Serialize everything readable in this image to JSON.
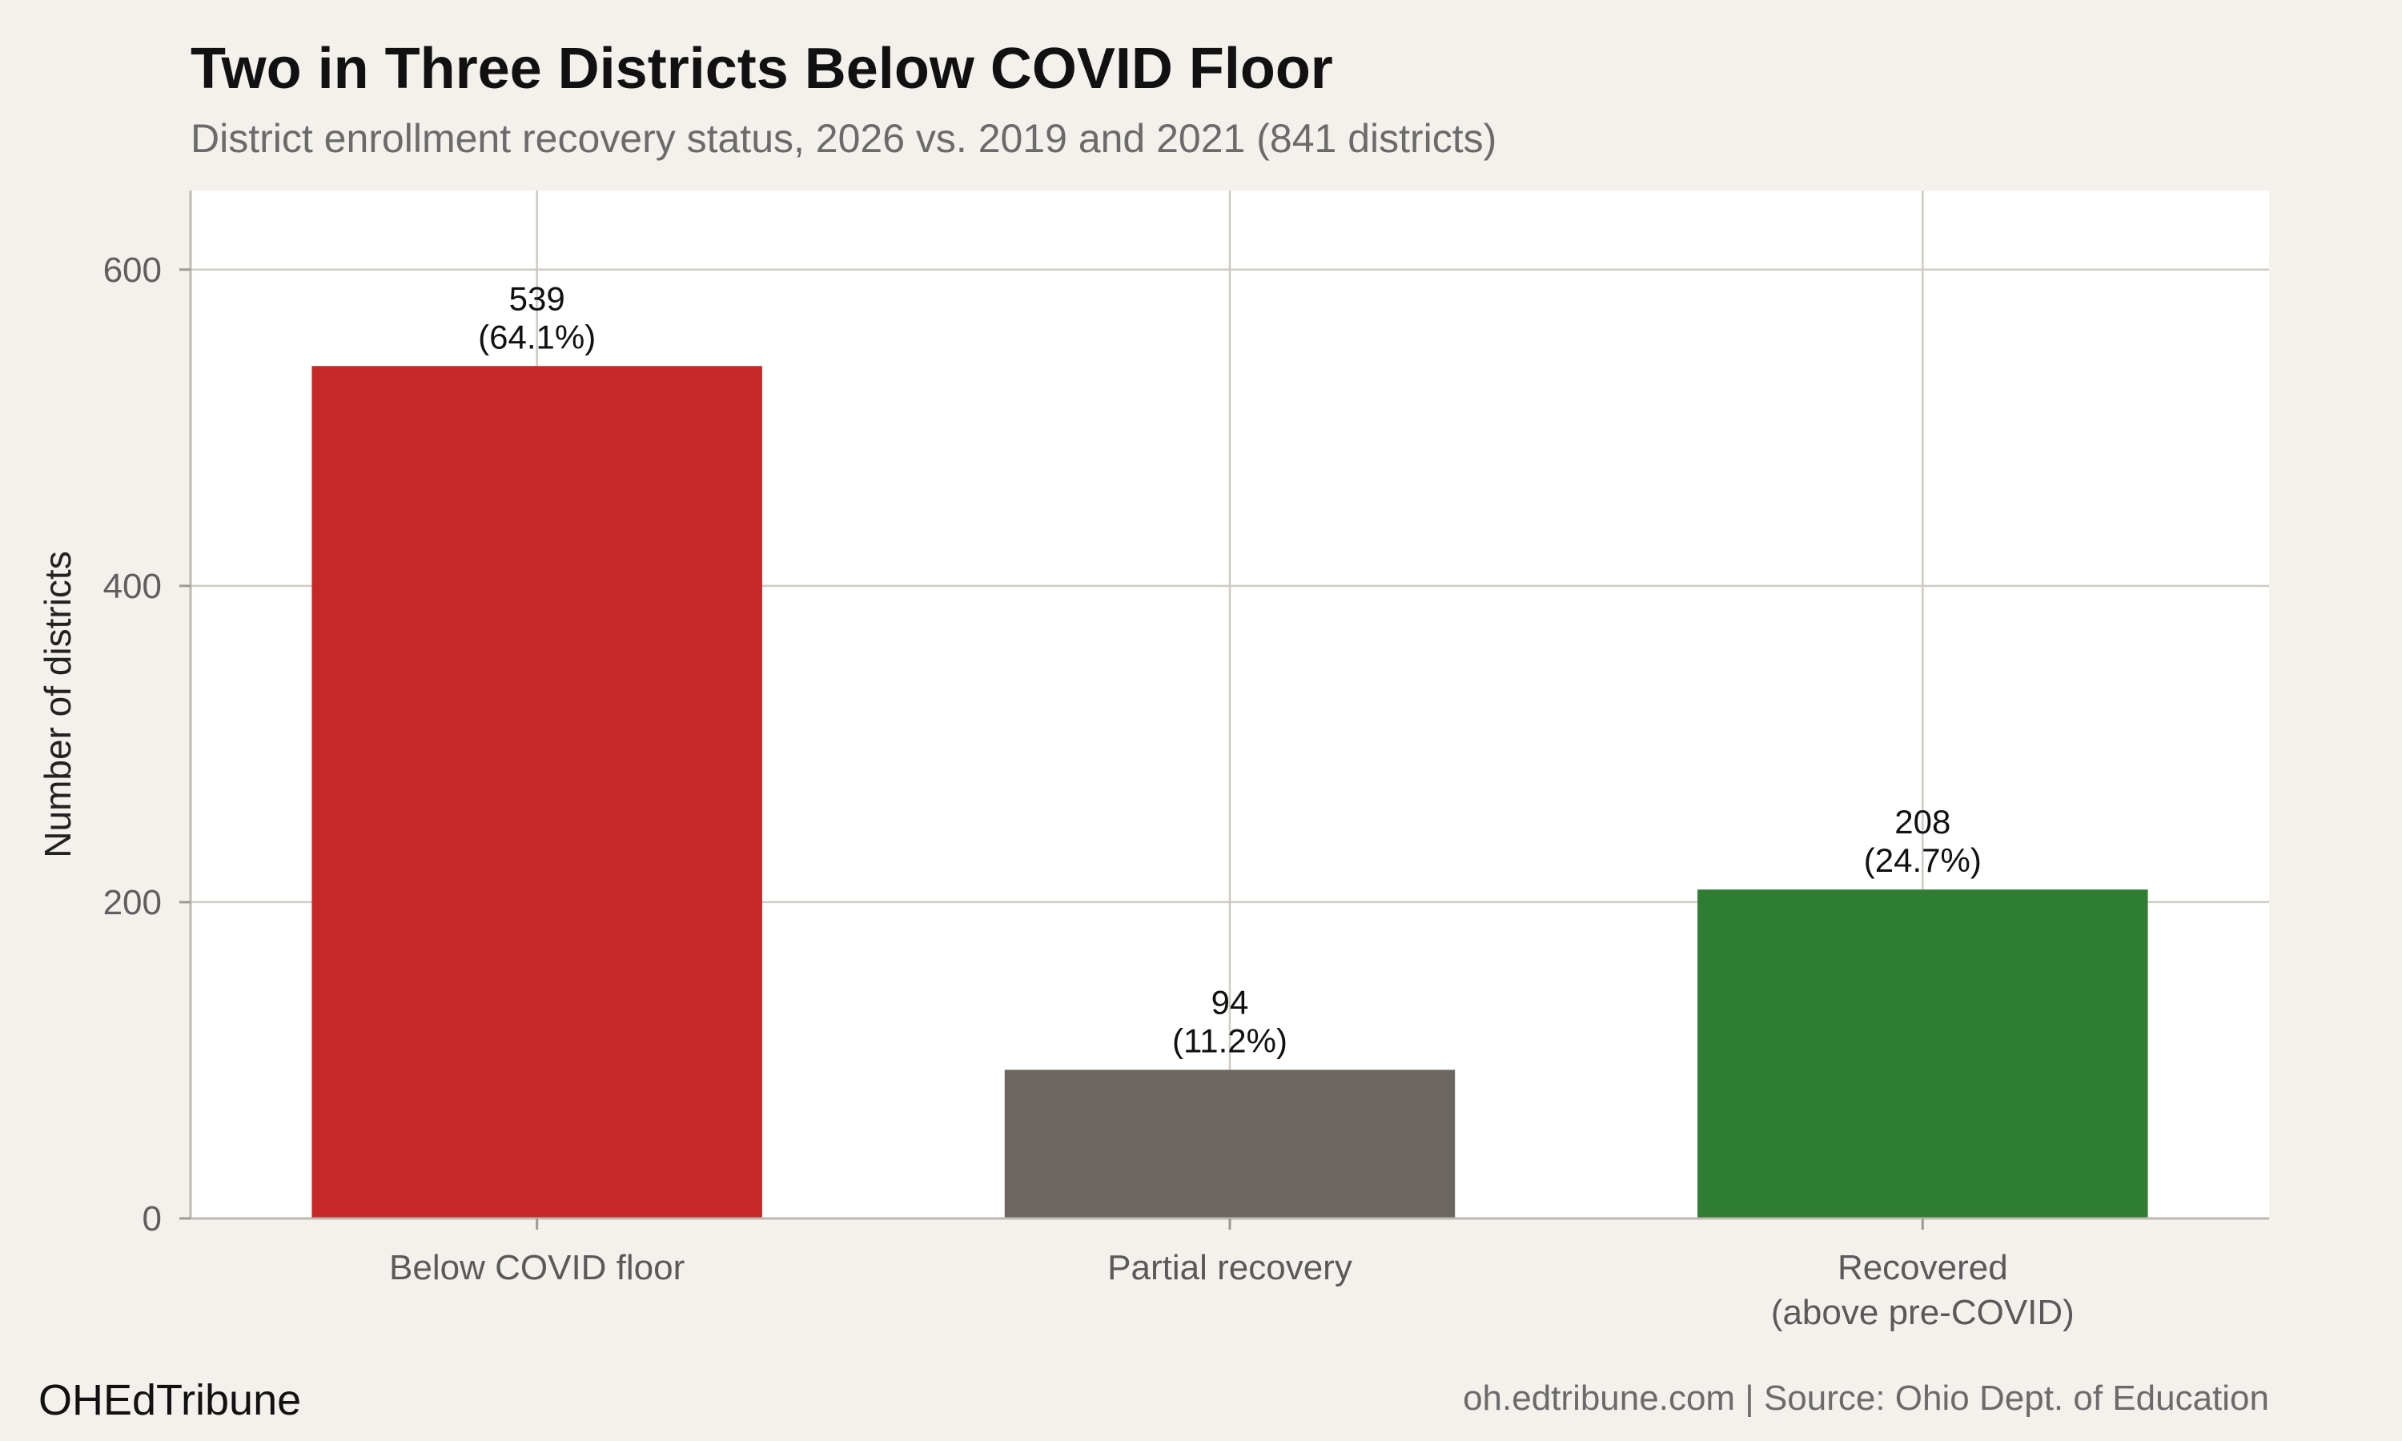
{
  "header": {
    "title": "Two in Three Districts Below COVID Floor",
    "subtitle": "District enrollment recovery status, 2026 vs. 2019 and 2021 (841 districts)"
  },
  "footer": {
    "brand": "OHEdTribune",
    "source": "oh.edtribune.com | Source: Ohio Dept. of Education"
  },
  "chart_data": {
    "type": "bar",
    "title": "Two in Three Districts Below COVID Floor",
    "subtitle": "District enrollment recovery status, 2026 vs. 2019 and 2021 (841 districts)",
    "xlabel": "",
    "ylabel": "Number of districts",
    "ylim": [
      0,
      650
    ],
    "yticks": [
      0,
      200,
      400,
      600
    ],
    "grid": true,
    "legend": "none",
    "categories": [
      [
        "Below COVID floor"
      ],
      [
        "Partial recovery"
      ],
      [
        "Recovered",
        "(above pre-COVID)"
      ]
    ],
    "values": [
      539,
      94,
      208
    ],
    "data_labels": [
      [
        "539",
        "(64.1%)"
      ],
      [
        "94",
        "(11.2%)"
      ],
      [
        "208",
        "(24.7%)"
      ]
    ],
    "colors": [
      "#c62828",
      "#6b6660",
      "#2e7d32"
    ]
  },
  "colors": {
    "background": "#f4f1ec",
    "panel": "#ffffff",
    "grid": "#cfcbc3"
  }
}
